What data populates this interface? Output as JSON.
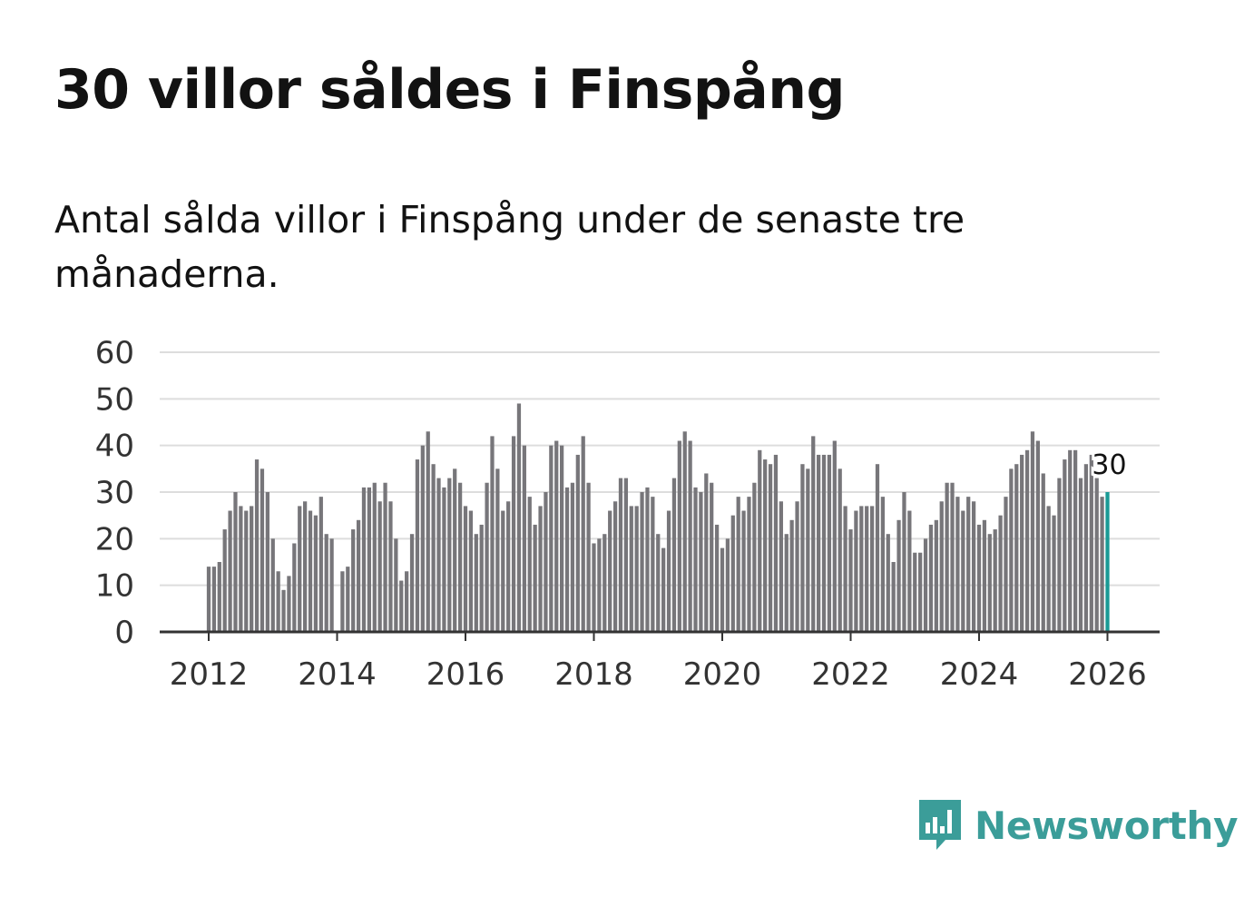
{
  "title": "30 villor såldes i Finspång",
  "subtitle": "Antal sålda villor i Finspång under de senaste tre månaderna.",
  "brand": {
    "name": "Newsworthy",
    "icon": "bar-chart-speech-bubble-icon",
    "color": "#3b9d99"
  },
  "colors": {
    "bar": "#77767a",
    "highlight": "#1a9a95",
    "grid": "#dddddd",
    "axis": "#333333"
  },
  "chart_data": {
    "type": "bar",
    "title": "30 villor såldes i Finspång",
    "xlabel": "",
    "ylabel": "",
    "ylim": [
      0,
      60
    ],
    "yticks": [
      "0",
      "10",
      "20",
      "30",
      "40",
      "50",
      "60"
    ],
    "xticks": [
      "2012",
      "2014",
      "2016",
      "2018",
      "2020",
      "2022",
      "2024",
      "2026"
    ],
    "start": "2012-01",
    "frequency": "monthly",
    "values": [
      14,
      14,
      15,
      22,
      26,
      30,
      27,
      26,
      27,
      37,
      35,
      30,
      20,
      13,
      9,
      12,
      19,
      27,
      28,
      26,
      25,
      29,
      21,
      20,
      0,
      13,
      14,
      22,
      24,
      31,
      31,
      32,
      28,
      32,
      28,
      20,
      11,
      13,
      21,
      37,
      40,
      43,
      36,
      33,
      31,
      33,
      35,
      32,
      27,
      26,
      21,
      23,
      32,
      42,
      35,
      26,
      28,
      42,
      49,
      40,
      29,
      23,
      27,
      30,
      40,
      41,
      40,
      31,
      32,
      38,
      42,
      32,
      19,
      20,
      21,
      26,
      28,
      33,
      33,
      27,
      27,
      30,
      31,
      29,
      21,
      18,
      26,
      33,
      41,
      43,
      41,
      31,
      30,
      34,
      32,
      23,
      18,
      20,
      25,
      29,
      26,
      29,
      32,
      39,
      37,
      36,
      38,
      28,
      21,
      24,
      28,
      36,
      35,
      42,
      38,
      38,
      38,
      41,
      35,
      27,
      22,
      26,
      27,
      27,
      27,
      36,
      29,
      21,
      15,
      24,
      30,
      26,
      17,
      17,
      20,
      23,
      24,
      28,
      32,
      32,
      29,
      26,
      29,
      28,
      23,
      24,
      21,
      22,
      25,
      29,
      35,
      36,
      38,
      39,
      43,
      41,
      34,
      27,
      25,
      33,
      37,
      39,
      39,
      33,
      36,
      38,
      33,
      29,
      30
    ],
    "highlight_label": "30"
  }
}
